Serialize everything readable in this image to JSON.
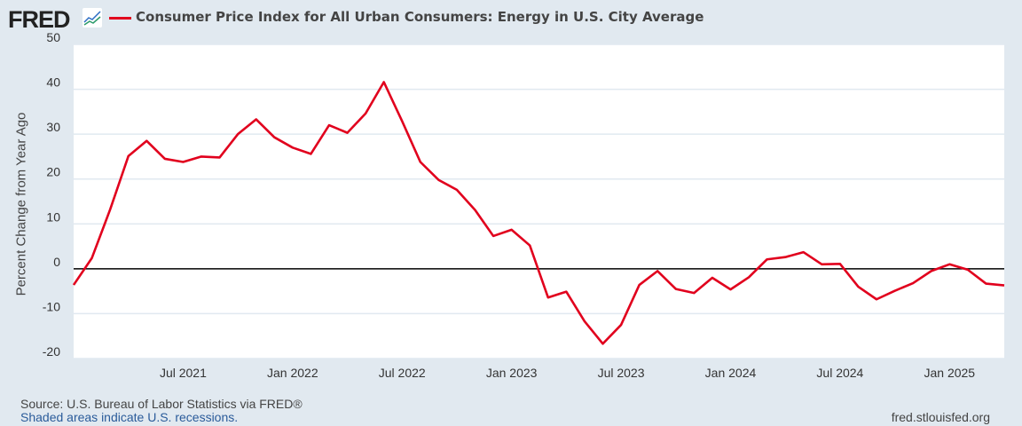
{
  "header": {
    "logo": "FRED",
    "logo_icon": "trend-chart-icon"
  },
  "colors": {
    "series": "#e1001d",
    "background": "#e1e9f0",
    "plot": "#ffffff",
    "grid": "#e1e9f0"
  },
  "chart_data": {
    "type": "line",
    "title": "Consumer Price Index for All Urban Consumers: Energy in U.S. City Average",
    "ylabel": "Percent Change from Year Ago",
    "xlabel": "",
    "ylim": [
      -20,
      50
    ],
    "yticks": [
      50,
      40,
      30,
      20,
      10,
      0,
      -10,
      -20
    ],
    "xticks": [
      {
        "label": "Jul 2021",
        "index": 6
      },
      {
        "label": "Jan 2022",
        "index": 12
      },
      {
        "label": "Jul 2022",
        "index": 18
      },
      {
        "label": "Jan 2023",
        "index": 24
      },
      {
        "label": "Jul 2023",
        "index": 30
      },
      {
        "label": "Jan 2024",
        "index": 36
      },
      {
        "label": "Jul 2024",
        "index": 42
      },
      {
        "label": "Jan 2025",
        "index": 48
      }
    ],
    "grid": true,
    "start": "2021-01",
    "frequency": "monthly",
    "series": [
      {
        "name": "Consumer Price Index for All Urban Consumers: Energy in U.S. City Average",
        "values": [
          -3.6,
          2.4,
          13.2,
          25.1,
          28.5,
          24.5,
          23.8,
          25.0,
          24.8,
          30.0,
          33.3,
          29.3,
          27.0,
          25.6,
          32.0,
          30.3,
          34.6,
          41.6,
          32.9,
          23.8,
          19.8,
          17.6,
          13.1,
          7.3,
          8.7,
          5.2,
          -6.4,
          -5.1,
          -11.7,
          -16.7,
          -12.5,
          -3.6,
          -0.5,
          -4.5,
          -5.4,
          -2.0,
          -4.6,
          -1.9,
          2.1,
          2.6,
          3.7,
          1.0,
          1.1,
          -4.0,
          -6.8,
          -4.9,
          -3.2,
          -0.5,
          1.0,
          -0.2,
          -3.3,
          -3.7
        ]
      }
    ]
  },
  "footer": {
    "source": "Source: U.S. Bureau of Labor Statistics via FRED®",
    "recessions": "Shaded areas indicate U.S. recessions.",
    "url": "fred.stlouisfed.org"
  }
}
